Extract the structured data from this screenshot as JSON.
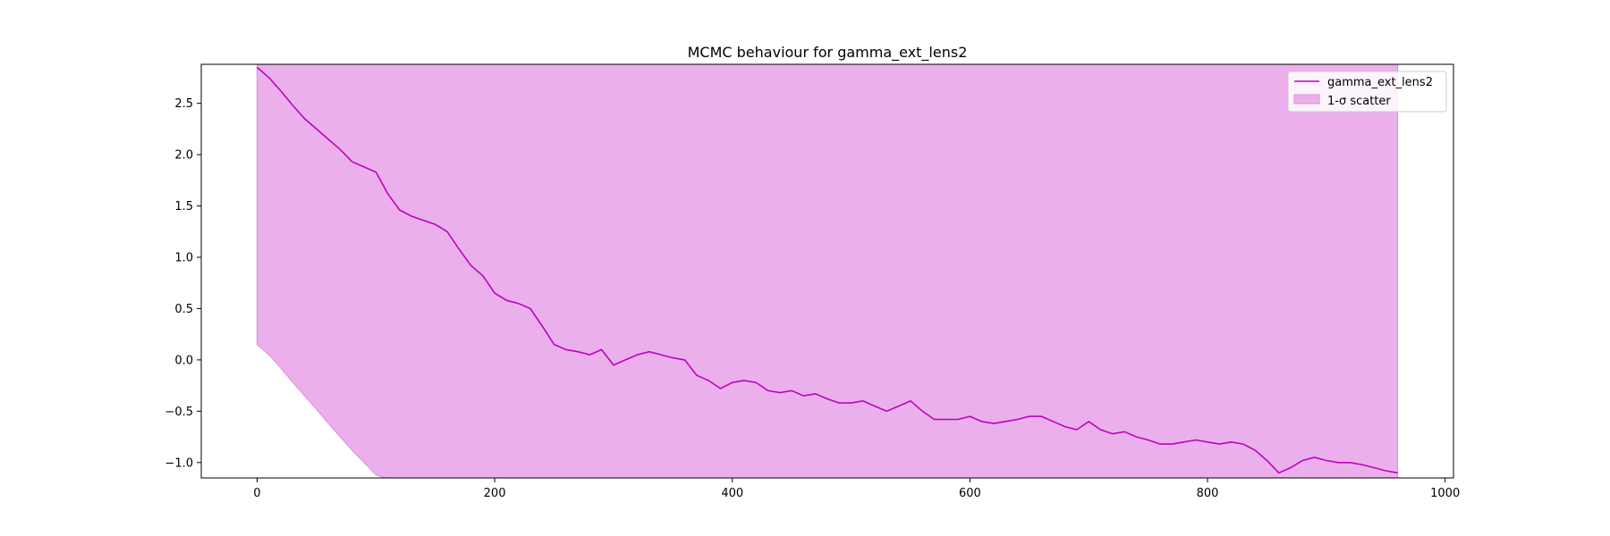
{
  "chart_data": {
    "type": "line",
    "title": "MCMC behaviour for gamma_ext_lens2",
    "xlabel": "",
    "ylabel": "",
    "xlim": [
      -47,
      1007
    ],
    "ylim": [
      -1.15,
      2.88
    ],
    "x_ticks": [
      0,
      200,
      400,
      600,
      800,
      1000
    ],
    "x_tick_labels": [
      "0",
      "200",
      "400",
      "600",
      "800",
      "1000"
    ],
    "y_ticks": [
      -1.0,
      -0.5,
      0.0,
      0.5,
      1.0,
      1.5,
      2.0,
      2.5
    ],
    "y_tick_labels": [
      "−1.0",
      "−0.5",
      "0.0",
      "0.5",
      "1.0",
      "1.5",
      "2.0",
      "2.5"
    ],
    "grid": false,
    "legend_position": "top-right",
    "colors": {
      "line": "#bf00bf",
      "fill": "#ebb0eb",
      "fill_edge": "#e08ae0"
    },
    "series": [
      {
        "name": "gamma_ext_lens2",
        "kind": "line",
        "x": [
          0,
          10,
          20,
          30,
          40,
          50,
          60,
          70,
          80,
          90,
          100,
          110,
          120,
          130,
          140,
          150,
          160,
          170,
          180,
          190,
          200,
          210,
          220,
          230,
          240,
          250,
          260,
          270,
          280,
          290,
          300,
          310,
          320,
          330,
          340,
          350,
          360,
          370,
          380,
          390,
          400,
          410,
          420,
          430,
          440,
          450,
          460,
          470,
          480,
          490,
          500,
          510,
          520,
          530,
          540,
          550,
          560,
          570,
          580,
          590,
          600,
          610,
          620,
          630,
          640,
          650,
          660,
          670,
          680,
          690,
          700,
          710,
          720,
          730,
          740,
          750,
          760,
          770,
          780,
          790,
          800,
          810,
          820,
          830,
          840,
          850,
          860,
          870,
          880,
          890,
          900,
          910,
          920,
          930,
          940,
          950,
          960
        ],
        "values": [
          2.85,
          2.75,
          2.62,
          2.48,
          2.35,
          2.25,
          2.15,
          2.05,
          1.93,
          1.88,
          1.83,
          1.62,
          1.46,
          1.4,
          1.36,
          1.32,
          1.25,
          1.08,
          0.92,
          0.82,
          0.65,
          0.58,
          0.55,
          0.5,
          0.33,
          0.15,
          0.1,
          0.08,
          0.05,
          0.1,
          -0.05,
          0.0,
          0.05,
          0.08,
          0.05,
          0.02,
          0.0,
          -0.15,
          -0.2,
          -0.28,
          -0.22,
          -0.2,
          -0.22,
          -0.3,
          -0.32,
          -0.3,
          -0.35,
          -0.33,
          -0.38,
          -0.42,
          -0.42,
          -0.4,
          -0.45,
          -0.5,
          -0.45,
          -0.4,
          -0.5,
          -0.58,
          -0.58,
          -0.58,
          -0.55,
          -0.6,
          -0.62,
          -0.6,
          -0.58,
          -0.55,
          -0.55,
          -0.6,
          -0.65,
          -0.68,
          -0.6,
          -0.68,
          -0.72,
          -0.7,
          -0.75,
          -0.78,
          -0.82,
          -0.82,
          -0.8,
          -0.78,
          -0.8,
          -0.82,
          -0.8,
          -0.82,
          -0.88,
          -0.98,
          -1.1,
          -1.05,
          -0.98,
          -0.95,
          -0.98,
          -1.0,
          -1.0,
          -1.02,
          -1.05,
          -1.08,
          -1.1
        ]
      },
      {
        "name": "1-σ scatter",
        "kind": "band",
        "x": [
          0,
          10,
          20,
          30,
          40,
          50,
          60,
          70,
          80,
          90,
          100,
          105,
          110,
          960
        ],
        "lower": [
          0.15,
          0.05,
          -0.08,
          -0.22,
          -0.35,
          -0.48,
          -0.62,
          -0.75,
          -0.88,
          -1.0,
          -1.12,
          -1.14,
          -1.15,
          -1.15
        ],
        "upper": [
          2.88,
          2.88,
          2.88,
          2.88,
          2.88,
          2.88,
          2.88,
          2.88,
          2.88,
          2.88,
          2.88,
          2.88,
          2.88,
          2.88
        ]
      }
    ]
  }
}
